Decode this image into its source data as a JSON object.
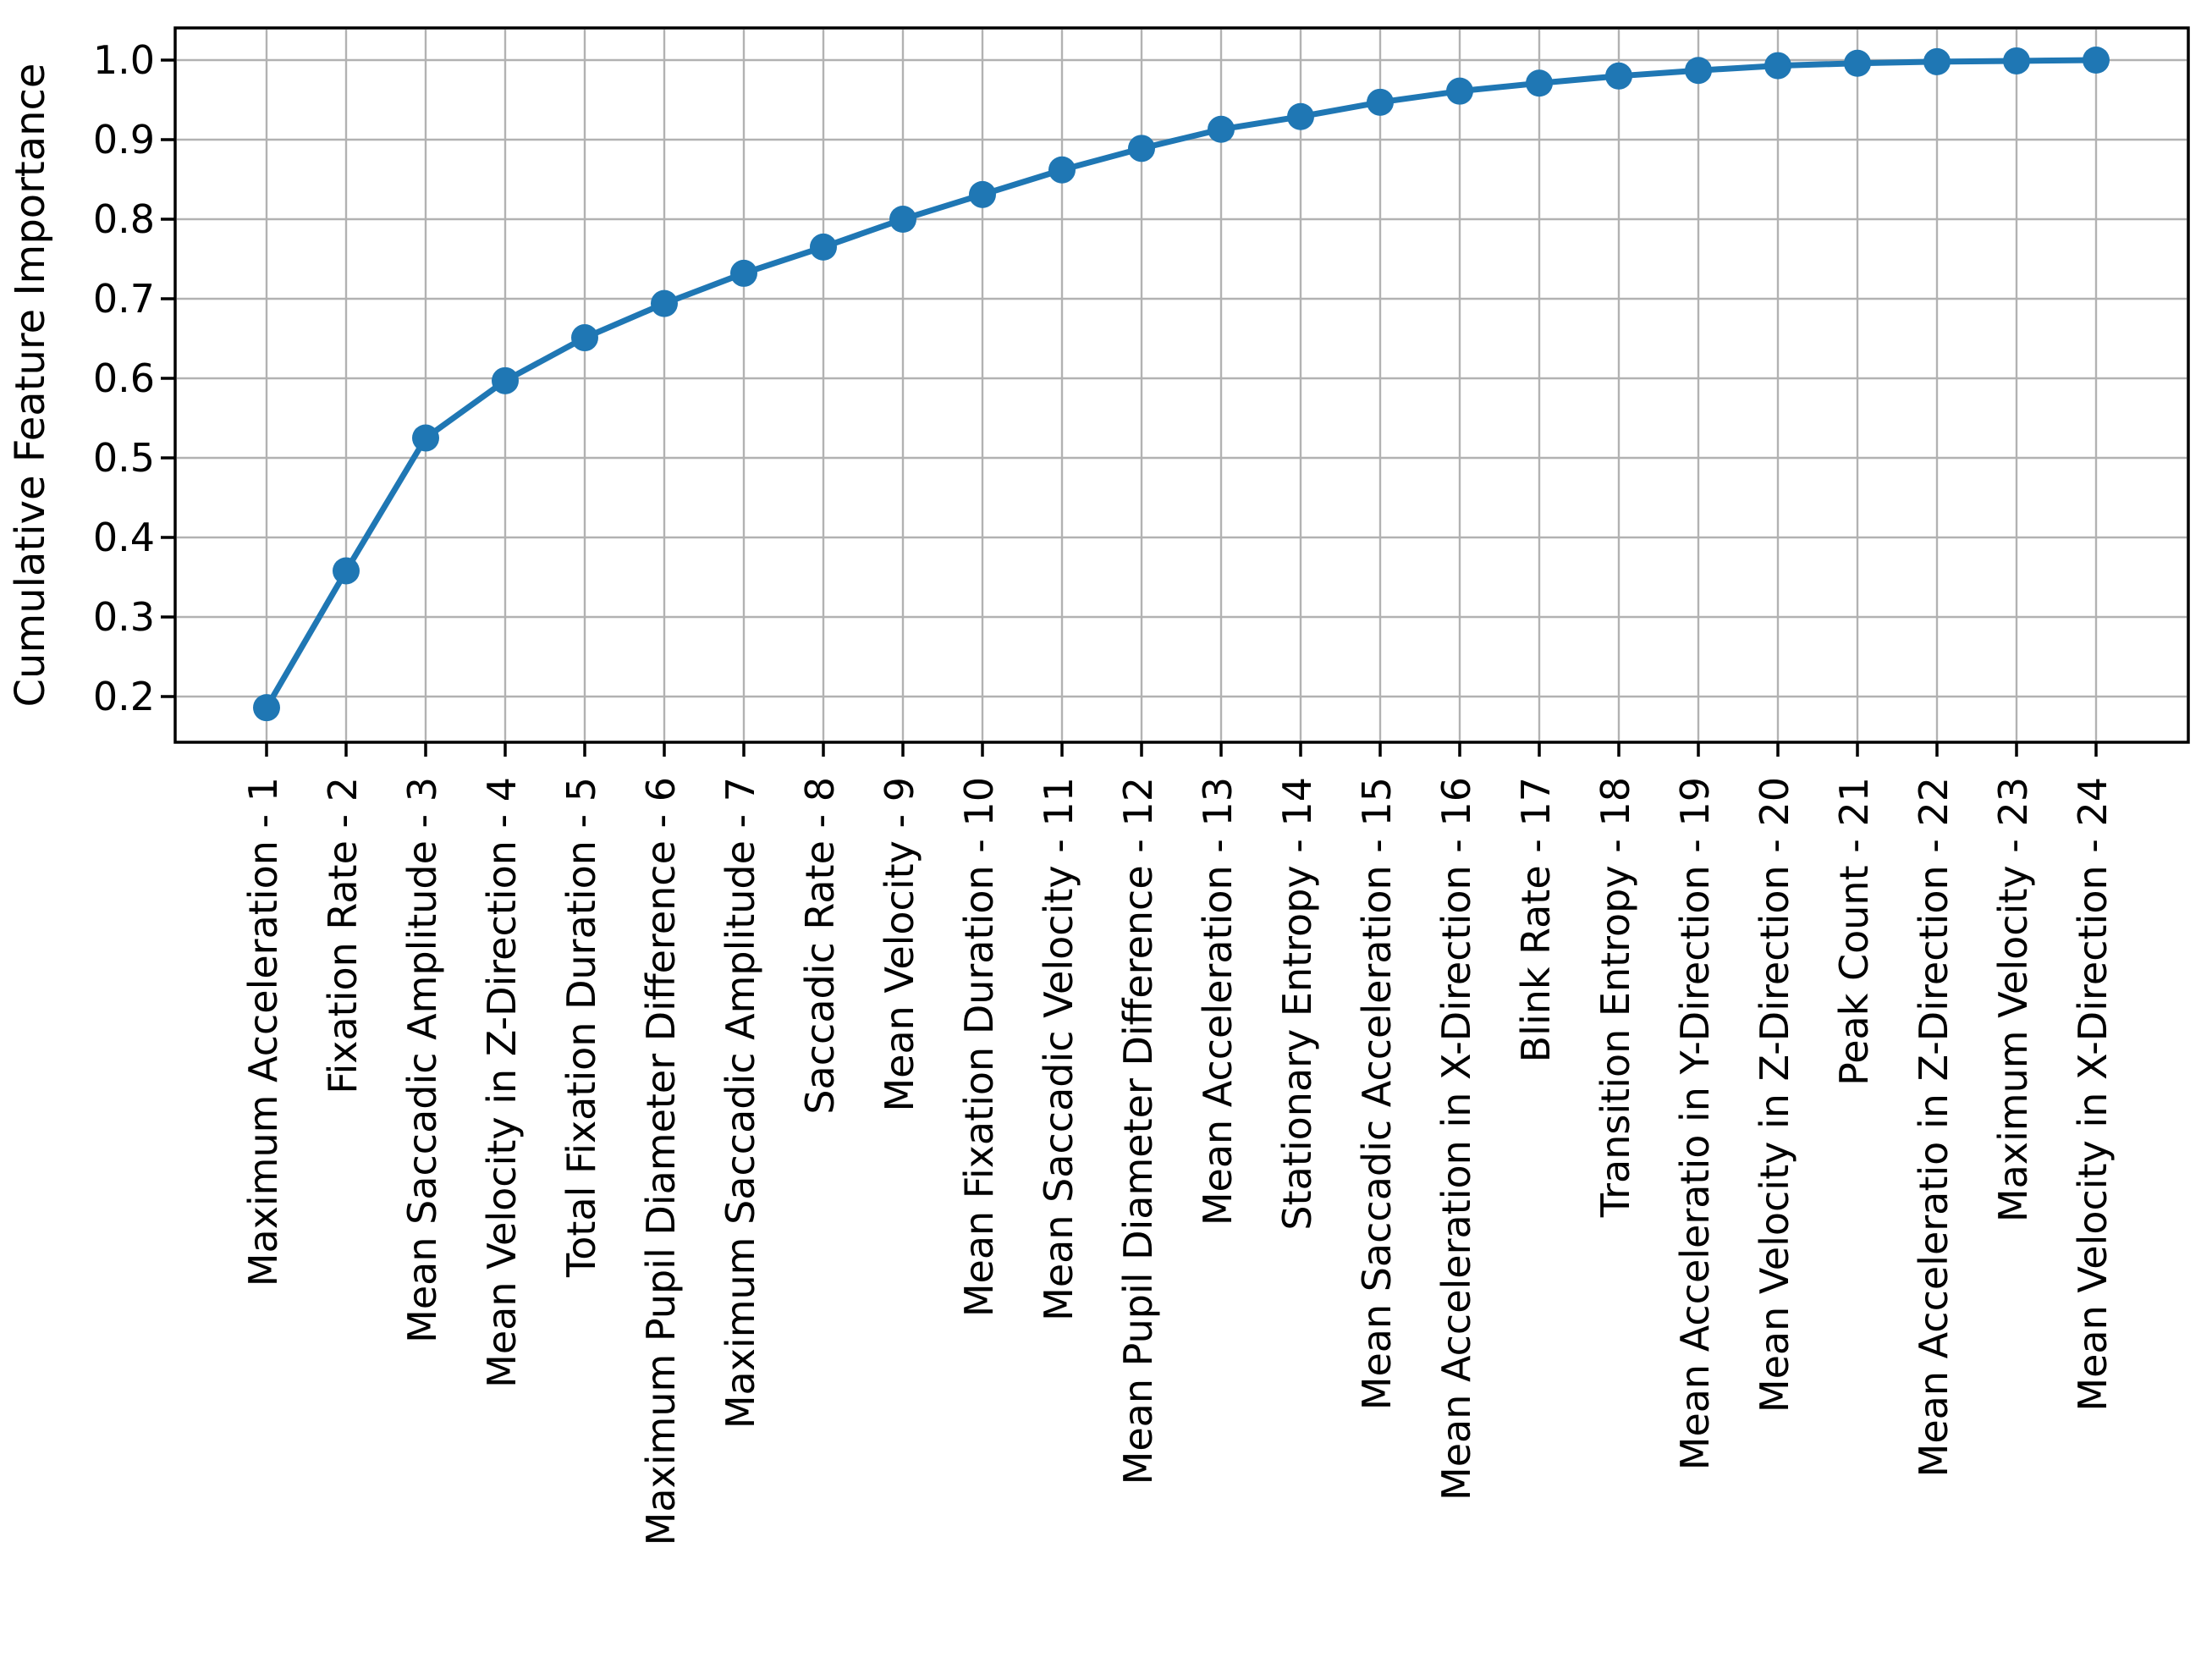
{
  "figure": {
    "background": "#ffffff"
  },
  "chart_data": {
    "type": "line",
    "title": "",
    "xlabel": "",
    "ylabel": "Cumulative Feature Importance",
    "categories": [
      "Maximum Acceleration - 1",
      "Fixation Rate - 2",
      "Mean Saccadic Amplitude - 3",
      "Mean Velocity in Z-Direction - 4",
      "Total Fixation Duration - 5",
      "Maximum Pupil Diameter Difference - 6",
      "Maximum Saccadic Amplitude - 7",
      "Saccadic Rate - 8",
      "Mean Velocity - 9",
      "Mean Fixation Duration - 10",
      "Mean Saccadic Velocity - 11",
      "Mean Pupil Diameter Difference - 12",
      "Mean Acceleration - 13",
      "Stationary Entropy - 14",
      "Mean Saccadic Acceleration - 15",
      "Mean Acceleration in X-Direction - 16",
      "Blink Rate - 17",
      "Transition Entropy - 18",
      "Mean Acceleratio in Y-Direction - 19",
      "Mean Velocity in Z-Direction - 20",
      "Peak Count - 21",
      "Mean Acceleratio in Z-Direction - 22",
      "Maximum Velocity - 23",
      "Mean Velocity in X-Direction - 24"
    ],
    "x": [
      1,
      2,
      3,
      4,
      5,
      6,
      7,
      8,
      9,
      10,
      11,
      12,
      13,
      14,
      15,
      16,
      17,
      18,
      19,
      20,
      21,
      22,
      23,
      24
    ],
    "values": [
      0.186,
      0.358,
      0.525,
      0.597,
      0.651,
      0.694,
      0.732,
      0.765,
      0.8,
      0.831,
      0.862,
      0.889,
      0.913,
      0.929,
      0.947,
      0.961,
      0.971,
      0.98,
      0.987,
      0.993,
      0.996,
      0.998,
      0.999,
      1.0
    ],
    "yticks": [
      0.2,
      0.3,
      0.4,
      0.5,
      0.6,
      0.7,
      0.8,
      0.9,
      1.0
    ],
    "ytick_labels": [
      "0.2",
      "0.3",
      "0.4",
      "0.5",
      "0.6",
      "0.7",
      "0.8",
      "0.9",
      "1.0"
    ],
    "ylim": [
      0.14,
      1.04
    ],
    "grid": true,
    "legend_position": "none",
    "marker": "o",
    "colors": {
      "line": "#1f77b4",
      "marker": "#1f77b4",
      "grid": "#b2b2b2",
      "spine": "#000000",
      "text": "#000000"
    }
  }
}
